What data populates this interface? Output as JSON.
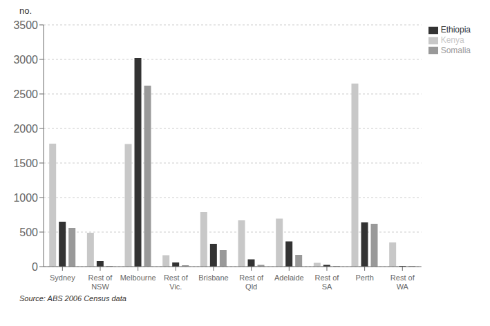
{
  "chart_data": {
    "type": "bar",
    "categories": [
      "Sydney",
      "Rest of\nNSW",
      "Melbourne",
      "Rest of\nVic.",
      "Brisbane",
      "Rest of\nQld",
      "Adelaide",
      "Rest of\nSA",
      "Perth",
      "Rest of\nWA"
    ],
    "series": [
      {
        "name": "Kenya",
        "color": "#c8c8c8",
        "values": [
          1780,
          490,
          1775,
          165,
          790,
          670,
          695,
          55,
          2650,
          350
        ]
      },
      {
        "name": "Ethiopia",
        "color": "#333333",
        "values": [
          650,
          80,
          3020,
          60,
          330,
          105,
          365,
          25,
          640,
          10
        ]
      },
      {
        "name": "Somalia",
        "color": "#999999",
        "values": [
          560,
          10,
          2620,
          20,
          240,
          25,
          170,
          10,
          620,
          10
        ]
      }
    ],
    "ylabel": "no.",
    "annotations": [
      "Source: ABS 2006 Census data"
    ],
    "ylim": [
      0,
      3500
    ],
    "yticks": [
      0,
      500,
      1000,
      1500,
      2000,
      2500,
      3000,
      3500
    ],
    "grid": true,
    "legend": "upper right"
  }
}
